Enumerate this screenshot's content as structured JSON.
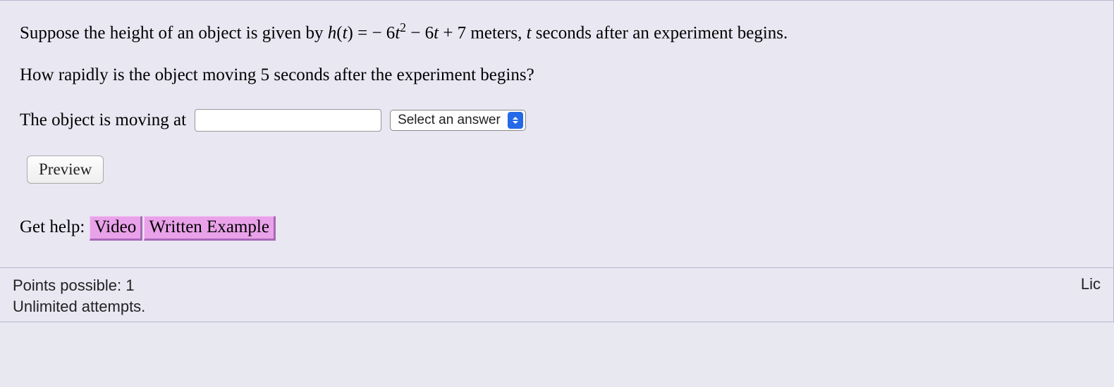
{
  "question": {
    "line1_part1": "Suppose the height of an object is given by ",
    "func_name": "h",
    "func_arg": "t",
    "equals": " = ",
    "coef1": " − 6",
    "var1": "t",
    "exp": "2",
    "coef2": " − 6",
    "var2": "t",
    "tail": " + 7 meters, ",
    "var3": "t",
    "line1_part2": " seconds after an experiment begins.",
    "line2": "How rapidly is the object moving 5 seconds after the experiment begins?"
  },
  "answer": {
    "label": "The object is moving at",
    "input_value": "",
    "select_placeholder": "Select an answer"
  },
  "buttons": {
    "preview": "Preview"
  },
  "help": {
    "label": "Get help:",
    "video": "Video",
    "written": "Written Example"
  },
  "footer": {
    "points": "Points possible: 1",
    "attempts": "Unlimited attempts.",
    "right": "Lic"
  }
}
